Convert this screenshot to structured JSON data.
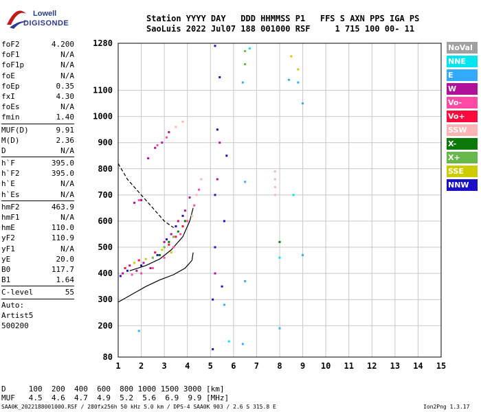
{
  "logo": {
    "line1": "Lowell",
    "line2": "DIGISONDE"
  },
  "header": {
    "line1": "Station YYYY DAY   DDD HHMMSS P1   FFS S AXN PPS IGA PS",
    "line2": "SaoLuis 2022 Jul07 188 001000 RSF     1 715 100 00- 11"
  },
  "params": {
    "group1": [
      {
        "name": "foF2",
        "value": "4.200"
      },
      {
        "name": "foF1",
        "value": "N/A"
      },
      {
        "name": "foF1p",
        "value": "N/A"
      },
      {
        "name": "foE",
        "value": "N/A"
      },
      {
        "name": "foEp",
        "value": "0.35"
      },
      {
        "name": "fxI",
        "value": "4.30"
      },
      {
        "name": "foEs",
        "value": "N/A"
      },
      {
        "name": "fmin",
        "value": "1.40"
      }
    ],
    "group2": [
      {
        "name": "MUF(D)",
        "value": "9.91"
      },
      {
        "name": "M(D)",
        "value": "2.36"
      },
      {
        "name": "D",
        "value": "N/A"
      }
    ],
    "group3": [
      {
        "name": "h`F",
        "value": "395.0"
      },
      {
        "name": "h`F2",
        "value": "395.0"
      },
      {
        "name": "h`E",
        "value": "N/A"
      },
      {
        "name": "h`Es",
        "value": "N/A"
      }
    ],
    "group4": [
      {
        "name": "hmF2",
        "value": "463.9"
      },
      {
        "name": "hmF1",
        "value": "N/A"
      },
      {
        "name": "hmE",
        "value": "110.0"
      },
      {
        "name": "yF2",
        "value": "110.9"
      },
      {
        "name": "yF1",
        "value": "N/A"
      },
      {
        "name": "yE",
        "value": "20.0"
      },
      {
        "name": "B0",
        "value": "117.7"
      },
      {
        "name": "B1",
        "value": "1.64"
      }
    ],
    "group5": [
      {
        "name": "C-level",
        "value": "55"
      }
    ],
    "notes": [
      "Auto:",
      "Artist5",
      "500200"
    ]
  },
  "legend": [
    {
      "label": "NoVal",
      "color": "#a0a0a0"
    },
    {
      "label": "NNE",
      "color": "#00e5f0"
    },
    {
      "label": "E",
      "color": "#33aaff"
    },
    {
      "label": "W",
      "color": "#b0109a"
    },
    {
      "label": "Vo-",
      "color": "#ff4aa5"
    },
    {
      "label": "Vo+",
      "color": "#ff0a3c"
    },
    {
      "label": "SSW",
      "color": "#ffb3b3"
    },
    {
      "label": "X-",
      "color": "#0b7a0b"
    },
    {
      "label": "X+",
      "color": "#66b84a"
    },
    {
      "label": "SSE",
      "color": "#cccc00"
    },
    {
      "label": "NNW",
      "color": "#1a10c8"
    }
  ],
  "bottom": {
    "d_row": "D     100  200  400  600  800 1000 1500 3000 [km]",
    "muf_row": "MUF   4.5  4.6  4.7  4.9  5.2  5.6  6.9  9.9 [MHz]"
  },
  "footer": {
    "left": "SAA0K_2022188001000.RSF / 280fx256h 50 kHz 5.0 km / DPS-4 SAA0K 903 / 2.6 S 315.8 E",
    "right": "Ion2Png 1.3.17"
  },
  "chart_data": {
    "type": "scatter",
    "title": "",
    "xlabel": "",
    "ylabel": "",
    "xlim": [
      1,
      15
    ],
    "ylim": [
      80,
      1280
    ],
    "x_ticks": [
      1,
      2,
      3,
      4,
      5,
      6,
      7,
      8,
      9,
      10,
      11,
      12,
      13,
      14,
      15
    ],
    "y_ticks": [
      80,
      200,
      300,
      400,
      500,
      600,
      700,
      800,
      900,
      1000,
      1100,
      1280
    ],
    "grid": true,
    "series": [
      {
        "name": "W",
        "color": "#b0109a",
        "points": [
          [
            1.2,
            400
          ],
          [
            1.5,
            430
          ],
          [
            1.8,
            410
          ],
          [
            2.1,
            440
          ],
          [
            2.4,
            420
          ],
          [
            2.8,
            470
          ],
          [
            3.0,
            520
          ],
          [
            3.3,
            550
          ],
          [
            3.6,
            600
          ],
          [
            3.9,
            640
          ],
          [
            4.1,
            690
          ],
          [
            1.7,
            670
          ],
          [
            2.0,
            680
          ],
          [
            2.3,
            840
          ],
          [
            2.6,
            880
          ],
          [
            2.9,
            900
          ],
          [
            3.2,
            940
          ],
          [
            5.2,
            400
          ],
          [
            5.3,
            760
          ],
          [
            5.4,
            900
          ]
        ]
      },
      {
        "name": "Vo-",
        "color": "#ff4aa5",
        "points": [
          [
            1.6,
            395
          ],
          [
            2.0,
            400
          ],
          [
            2.5,
            420
          ],
          [
            3.0,
            460
          ],
          [
            3.4,
            500
          ],
          [
            3.7,
            550
          ],
          [
            4.0,
            600
          ],
          [
            4.3,
            660
          ],
          [
            4.5,
            720
          ],
          [
            1.9,
            680
          ],
          [
            2.7,
            890
          ],
          [
            3.1,
            920
          ]
        ]
      },
      {
        "name": "Vo+",
        "color": "#ff0a3c",
        "points": [
          [
            1.3,
            420
          ],
          [
            1.9,
            450
          ],
          [
            2.6,
            480
          ],
          [
            3.2,
            510
          ],
          [
            3.5,
            540
          ],
          [
            3.8,
            580
          ]
        ]
      },
      {
        "name": "SSW",
        "color": "#ffb3b3",
        "points": [
          [
            4.2,
            620
          ],
          [
            4.4,
            700
          ],
          [
            4.6,
            760
          ],
          [
            3.5,
            960
          ],
          [
            3.8,
            980
          ],
          [
            7.8,
            700
          ],
          [
            7.8,
            730
          ],
          [
            7.8,
            760
          ],
          [
            7.8,
            790
          ]
        ]
      },
      {
        "name": "X-",
        "color": "#0b7a0b",
        "points": [
          [
            2.8,
            470
          ],
          [
            3.2,
            520
          ],
          [
            3.6,
            560
          ],
          [
            3.9,
            600
          ],
          [
            8.0,
            520
          ]
        ]
      },
      {
        "name": "X+",
        "color": "#66b84a",
        "points": [
          [
            2.5,
            460
          ],
          [
            3.0,
            500
          ],
          [
            3.4,
            540
          ],
          [
            6.5,
            1250
          ],
          [
            6.5,
            1200
          ]
        ]
      },
      {
        "name": "SSE",
        "color": "#cccc00",
        "points": [
          [
            1.7,
            440
          ],
          [
            2.2,
            455
          ],
          [
            2.9,
            490
          ],
          [
            3.3,
            480
          ],
          [
            8.5,
            1230
          ],
          [
            8.8,
            1180
          ]
        ]
      },
      {
        "name": "NNW",
        "color": "#1a10c8",
        "points": [
          [
            1.1,
            390
          ],
          [
            1.4,
            410
          ],
          [
            2.0,
            430
          ],
          [
            2.7,
            470
          ],
          [
            3.1,
            530
          ],
          [
            3.5,
            580
          ],
          [
            3.8,
            620
          ],
          [
            5.1,
            110
          ],
          [
            5.1,
            300
          ],
          [
            5.2,
            500
          ],
          [
            5.2,
            700
          ],
          [
            5.3,
            950
          ],
          [
            5.4,
            1150
          ],
          [
            5.5,
            350
          ],
          [
            5.6,
            600
          ],
          [
            5.7,
            850
          ],
          [
            5.2,
            1270
          ]
        ]
      },
      {
        "name": "E",
        "color": "#33aaff",
        "points": [
          [
            1.9,
            180
          ],
          [
            6.4,
            1130
          ],
          [
            6.5,
            370
          ],
          [
            6.5,
            750
          ],
          [
            8.0,
            190
          ],
          [
            8.4,
            1140
          ],
          [
            8.8,
            1130
          ],
          [
            9.0,
            470
          ],
          [
            9.0,
            1050
          ],
          [
            6.4,
            130
          ],
          [
            5.6,
            280
          ]
        ]
      },
      {
        "name": "NNE",
        "color": "#00e5f0",
        "points": [
          [
            5.8,
            140
          ],
          [
            8.0,
            460
          ],
          [
            8.6,
            700
          ],
          [
            6.7,
            1260
          ]
        ]
      }
    ],
    "lines": [
      {
        "name": "profile",
        "color": "#000",
        "style": "solid",
        "points": [
          [
            1,
            290
          ],
          [
            1.6,
            320
          ],
          [
            2.2,
            350
          ],
          [
            2.8,
            375
          ],
          [
            3.4,
            395
          ],
          [
            3.9,
            420
          ],
          [
            4.2,
            450
          ],
          [
            4.25,
            480
          ]
        ]
      },
      {
        "name": "trace",
        "color": "#000",
        "style": "solid",
        "points": [
          [
            1.5,
            410
          ],
          [
            2.2,
            430
          ],
          [
            2.8,
            455
          ],
          [
            3.3,
            490
          ],
          [
            3.8,
            540
          ],
          [
            4.1,
            600
          ],
          [
            4.25,
            650
          ]
        ]
      },
      {
        "name": "dashed",
        "color": "#000",
        "style": "dashed",
        "points": [
          [
            1,
            820
          ],
          [
            1.4,
            760
          ],
          [
            1.9,
            710
          ],
          [
            2.3,
            670
          ],
          [
            2.7,
            630
          ],
          [
            3.0,
            600
          ],
          [
            3.4,
            575
          ]
        ]
      }
    ]
  }
}
